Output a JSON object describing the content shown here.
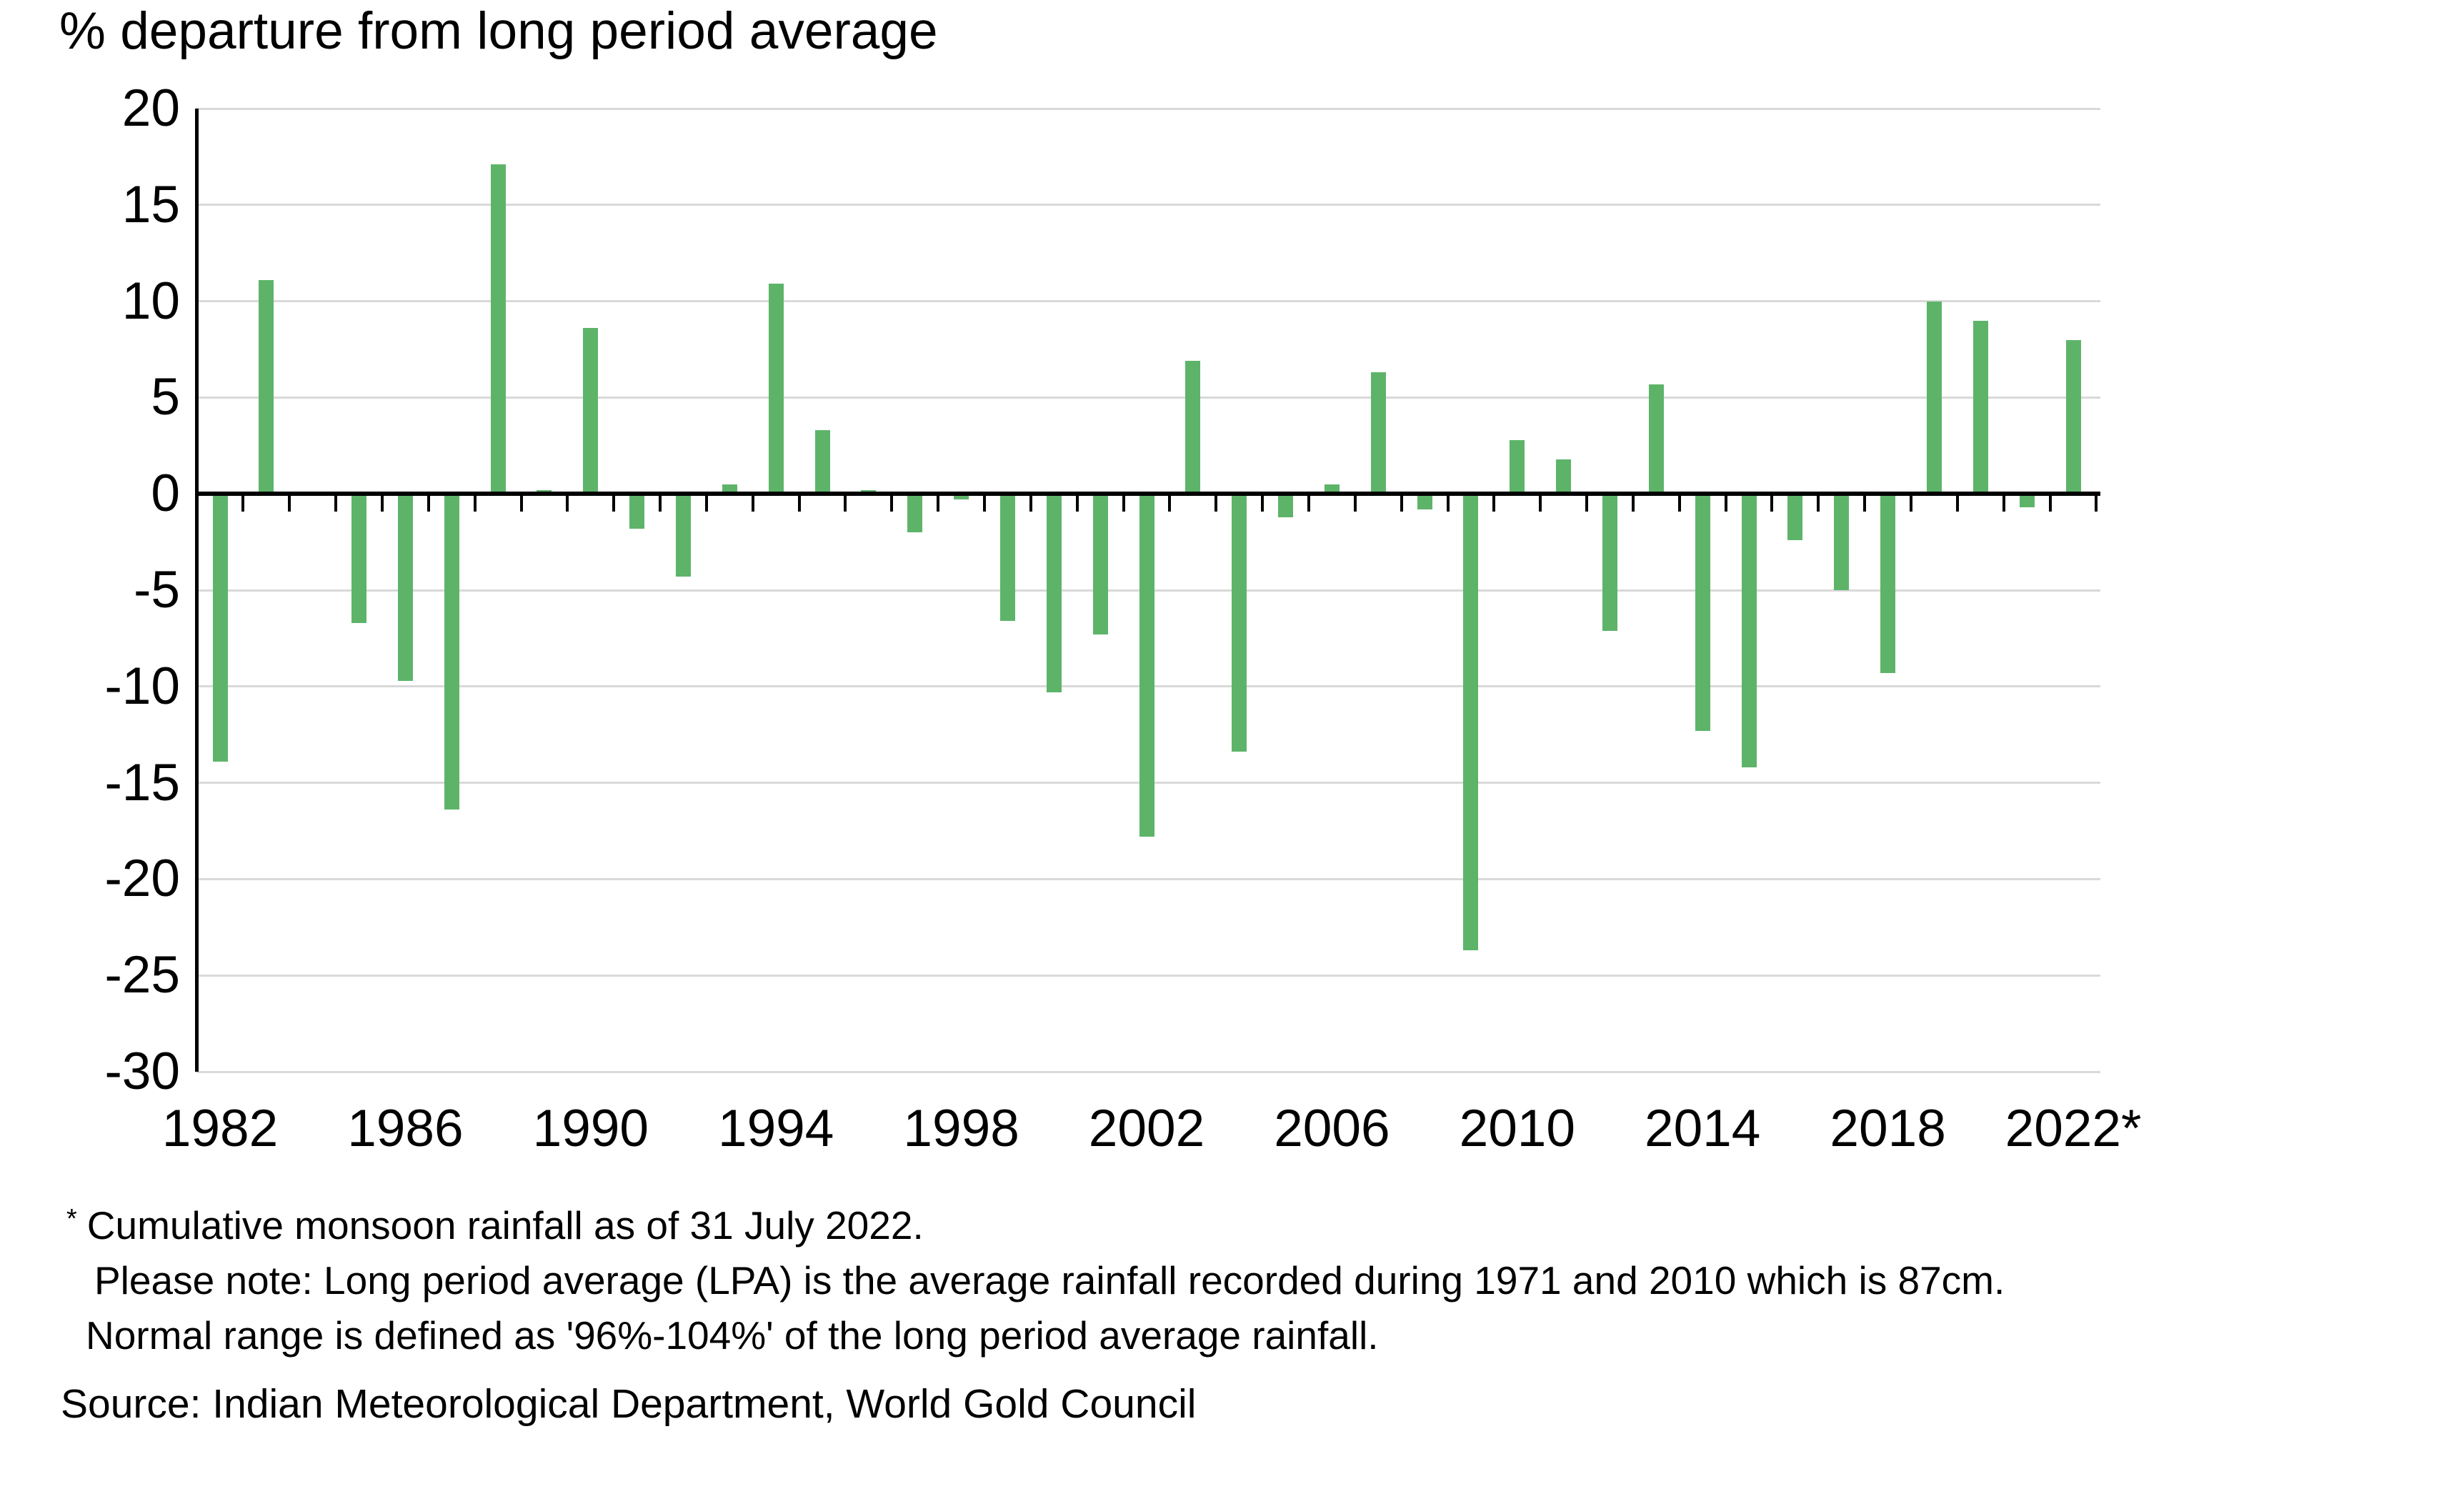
{
  "title": "% departure from long period average",
  "chart_data": {
    "type": "bar",
    "title": "% departure from long period average",
    "xlabel": "",
    "ylabel": "% departure from long period average",
    "ylim": [
      -30,
      20
    ],
    "ytick_interval": 5,
    "grid": true,
    "legend_position": "none",
    "x": [
      1982,
      1983,
      1984,
      1985,
      1986,
      1987,
      1988,
      1989,
      1990,
      1991,
      1992,
      1993,
      1994,
      1995,
      1996,
      1997,
      1998,
      1999,
      2000,
      2001,
      2002,
      2003,
      2004,
      2005,
      2006,
      2007,
      2008,
      2009,
      2010,
      2011,
      2012,
      2013,
      2014,
      2015,
      2016,
      2017,
      2018,
      2019,
      2020,
      2021,
      2022
    ],
    "values": [
      -13.9,
      11.1,
      0,
      -6.7,
      -9.7,
      -16.4,
      17.1,
      0.2,
      8.6,
      -1.8,
      -4.3,
      0.5,
      10.9,
      3.3,
      0.2,
      -2.0,
      -0.3,
      -6.6,
      -10.3,
      -7.3,
      -17.8,
      6.9,
      -13.4,
      -1.2,
      0.5,
      6.3,
      -0.8,
      -23.7,
      2.8,
      1.8,
      -7.1,
      5.7,
      -12.3,
      -14.2,
      -2.4,
      -5.0,
      -9.3,
      10.0,
      9.0,
      -0.7,
      8.0
    ],
    "y_axis_labels": [
      "20",
      "15",
      "10",
      "5",
      "0",
      "-5",
      "-10",
      "-15",
      "-20",
      "-25",
      "-30"
    ],
    "xtick_labels": [
      "1982",
      "1986",
      "1990",
      "1994",
      "1998",
      "2002",
      "2006",
      "2010",
      "2014",
      "2018",
      "2022*"
    ],
    "bar_color": "#5db469",
    "gridline_color": "#d9d9d9",
    "axis_color": "#000000"
  },
  "footnotes": {
    "marker": "*",
    "line1": "Cumulative monsoon rainfall as of 31 July 2022.",
    "line2": "Please note: Long period average (LPA) is the average rainfall recorded during 1971 and 2010 which is 87cm.",
    "line3": "Normal range is defined as '96%-104%' of the long period average rainfall."
  },
  "source": "Source: Indian Meteorological Department, World Gold Council"
}
